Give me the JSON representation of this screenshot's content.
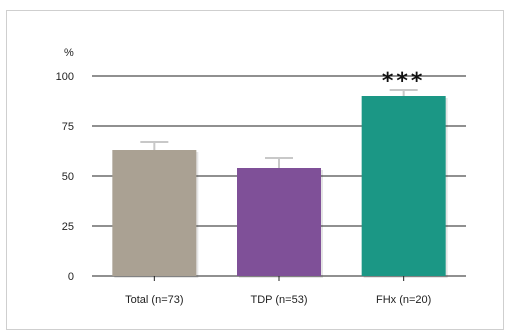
{
  "chart_data": {
    "type": "bar",
    "title": "",
    "xlabel": "",
    "ylabel": "%",
    "ylim": [
      0,
      100
    ],
    "yticks": [
      0,
      25,
      50,
      75,
      100
    ],
    "grid": true,
    "categories": [
      "Total (n=73)",
      "TDP (n=53)",
      "FHx (n=20)"
    ],
    "values": [
      63,
      54,
      90
    ],
    "errors": [
      4,
      5,
      3
    ],
    "annotations": [
      "",
      "",
      "***"
    ],
    "colors": [
      "#aaa193",
      "#7f5098",
      "#1b9785"
    ],
    "error_bar_color": "#c8c8c8"
  }
}
